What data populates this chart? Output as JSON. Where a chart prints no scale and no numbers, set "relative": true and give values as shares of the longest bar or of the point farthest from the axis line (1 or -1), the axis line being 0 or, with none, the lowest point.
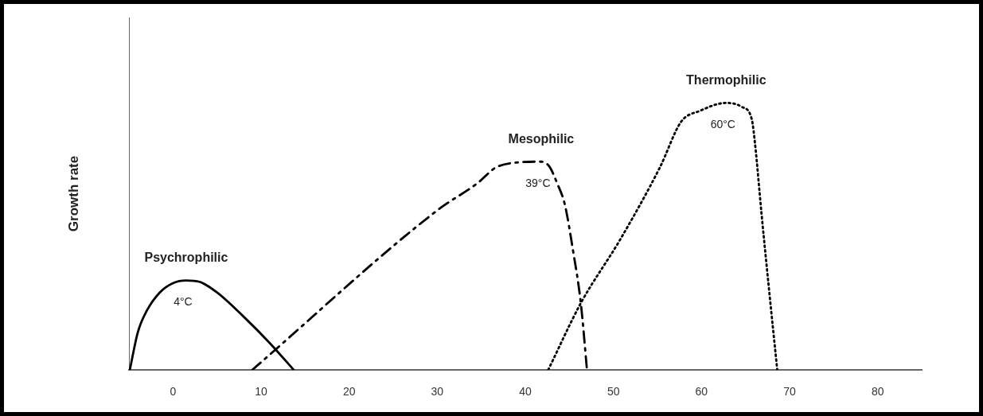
{
  "chart_data": {
    "type": "line",
    "relative": true,
    "ylabel": "Growth rate",
    "xlim": [
      -5,
      85
    ],
    "xticks": [
      0,
      10,
      20,
      30,
      40,
      50,
      60,
      70,
      80
    ],
    "tick_labels": "x",
    "grid": false,
    "legend": false,
    "marker": "none",
    "series": [
      {
        "name": "Psychrophilic",
        "color": "#000000",
        "line_style": "solid",
        "x": [
          -4.9,
          -4,
          -3,
          -1.5,
          0,
          1.5,
          3,
          5,
          8,
          11,
          13.7
        ],
        "values": [
          0,
          0.14,
          0.22,
          0.29,
          0.325,
          0.335,
          0.33,
          0.29,
          0.2,
          0.1,
          0
        ]
      },
      {
        "name": "Mesophilic",
        "color": "#000000",
        "line_style": "dashed",
        "x": [
          9,
          30.1,
          34.6,
          36.6,
          39.1,
          41.8,
          42.7,
          43.6,
          44.5,
          45.4,
          46.3,
          47
        ],
        "values": [
          0,
          0.6,
          0.7,
          0.757,
          0.777,
          0.78,
          0.763,
          0.7,
          0.617,
          0.45,
          0.25,
          0
        ]
      },
      {
        "name": "Thermophilic",
        "color": "#000000",
        "line_style": "dotted",
        "x": [
          42.6,
          46.3,
          50.8,
          55.3,
          57.7,
          59.8,
          62.8,
          64.6,
          65.7,
          66.1,
          66.8,
          67.7,
          68.6
        ],
        "values": [
          0,
          0.25,
          0.49,
          0.76,
          0.93,
          0.97,
          1,
          0.985,
          0.94,
          0.84,
          0.59,
          0.29,
          0
        ]
      }
    ],
    "annotations": [
      "4°C",
      "39°C",
      "60°C"
    ]
  }
}
